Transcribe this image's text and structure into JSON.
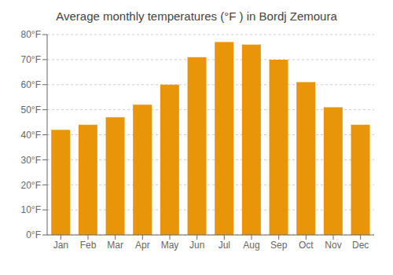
{
  "chart_data": {
    "type": "bar",
    "title": "Average monthly temperatures (°F ) in Bordj Zemoura",
    "categories": [
      "Jan",
      "Feb",
      "Mar",
      "Apr",
      "May",
      "Jun",
      "Jul",
      "Aug",
      "Sep",
      "Oct",
      "Nov",
      "Dec"
    ],
    "values": [
      42,
      44,
      47,
      52,
      60,
      71,
      77,
      76,
      70,
      61,
      51,
      44
    ],
    "color": "#E8950A",
    "ylim": [
      0,
      80
    ],
    "yticks": [
      {
        "value": 0,
        "label": "0°F"
      },
      {
        "value": 10,
        "label": "10°F"
      },
      {
        "value": 20,
        "label": "20°F"
      },
      {
        "value": 30,
        "label": "30°F"
      },
      {
        "value": 40,
        "label": "40°F"
      },
      {
        "value": 50,
        "label": "50°F"
      },
      {
        "value": 60,
        "label": "60°F"
      },
      {
        "value": 70,
        "label": "70°F"
      },
      {
        "value": 80,
        "label": "80°F"
      }
    ],
    "grid": true
  }
}
